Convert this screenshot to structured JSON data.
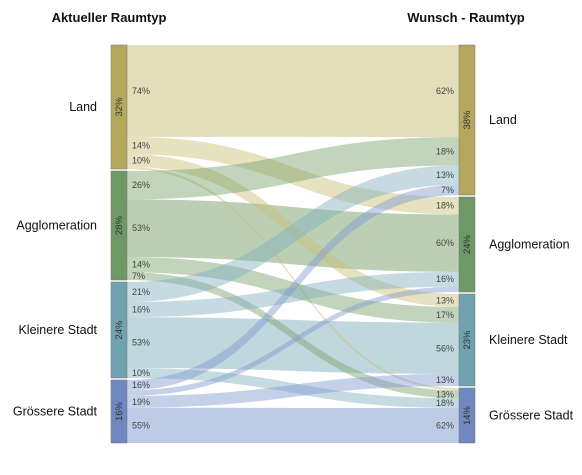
{
  "colors": {
    "Land": "#c8bc72",
    "Agglomeration": "#79a06a",
    "Kleinere Stadt": "#7fb0bc",
    "Grössere Stadt": "#7d98cf",
    "Land_bar": "#b5a85d",
    "Agglomeration_bar": "#6e9865",
    "Kleinere Stadt_bar": "#6fa2ae",
    "Grössere Stadt_bar": "#6f88c0"
  },
  "chart_data": {
    "type": "sankey",
    "left_title": "Aktueller Raumtyp",
    "right_title": "Wunsch - Raumtyp",
    "categories": [
      "Land",
      "Agglomeration",
      "Kleinere Stadt",
      "Grössere Stadt"
    ],
    "left_share": [
      {
        "label": "32%",
        "value": 32
      },
      {
        "label": "28%",
        "value": 28
      },
      {
        "label": "24%",
        "value": 24
      },
      {
        "label": "16%",
        "value": 16
      }
    ],
    "right_share": [
      {
        "label": "38%",
        "value": 38
      },
      {
        "label": "24%",
        "value": 24
      },
      {
        "label": "23%",
        "value": 23
      },
      {
        "label": "14%",
        "value": 14
      }
    ],
    "flows": [
      {
        "from": "Land",
        "to": "Land",
        "out": "74%",
        "in": "62%",
        "v": 23.7
      },
      {
        "from": "Land",
        "to": "Agglomeration",
        "out": "14%",
        "in": "18%",
        "v": 4.5
      },
      {
        "from": "Land",
        "to": "Kleinere Stadt",
        "out": "10%",
        "in": "13%",
        "v": 3.2
      },
      {
        "from": "Land",
        "to": "Grössere Stadt",
        "out": "",
        "in": "",
        "v": 0.6
      },
      {
        "from": "Agglomeration",
        "to": "Land",
        "out": "26%",
        "in": "18%",
        "v": 7.3
      },
      {
        "from": "Agglomeration",
        "to": "Agglomeration",
        "out": "53%",
        "in": "60%",
        "v": 14.8
      },
      {
        "from": "Agglomeration",
        "to": "Kleinere Stadt",
        "out": "14%",
        "in": "17%",
        "v": 3.9
      },
      {
        "from": "Agglomeration",
        "to": "Grössere Stadt",
        "out": "7%",
        "in": "13%",
        "v": 2.0
      },
      {
        "from": "Kleinere Stadt",
        "to": "Land",
        "out": "21%",
        "in": "13%",
        "v": 5.0
      },
      {
        "from": "Kleinere Stadt",
        "to": "Agglomeration",
        "out": "16%",
        "in": "16%",
        "v": 3.8
      },
      {
        "from": "Kleinere Stadt",
        "to": "Kleinere Stadt",
        "out": "53%",
        "in": "56%",
        "v": 12.7
      },
      {
        "from": "Kleinere Stadt",
        "to": "Grössere Stadt",
        "out": "10%",
        "in": "18%",
        "v": 2.5
      },
      {
        "from": "Grössere Stadt",
        "to": "Land",
        "out": "16%",
        "in": "7%",
        "v": 2.6
      },
      {
        "from": "Grössere Stadt",
        "to": "Agglomeration",
        "out": "",
        "in": "",
        "v": 1.4
      },
      {
        "from": "Grössere Stadt",
        "to": "Kleinere Stadt",
        "out": "19%",
        "in": "13%",
        "v": 3.0
      },
      {
        "from": "Grössere Stadt",
        "to": "Grössere Stadt",
        "out": "55%",
        "in": "62%",
        "v": 8.9
      }
    ]
  }
}
